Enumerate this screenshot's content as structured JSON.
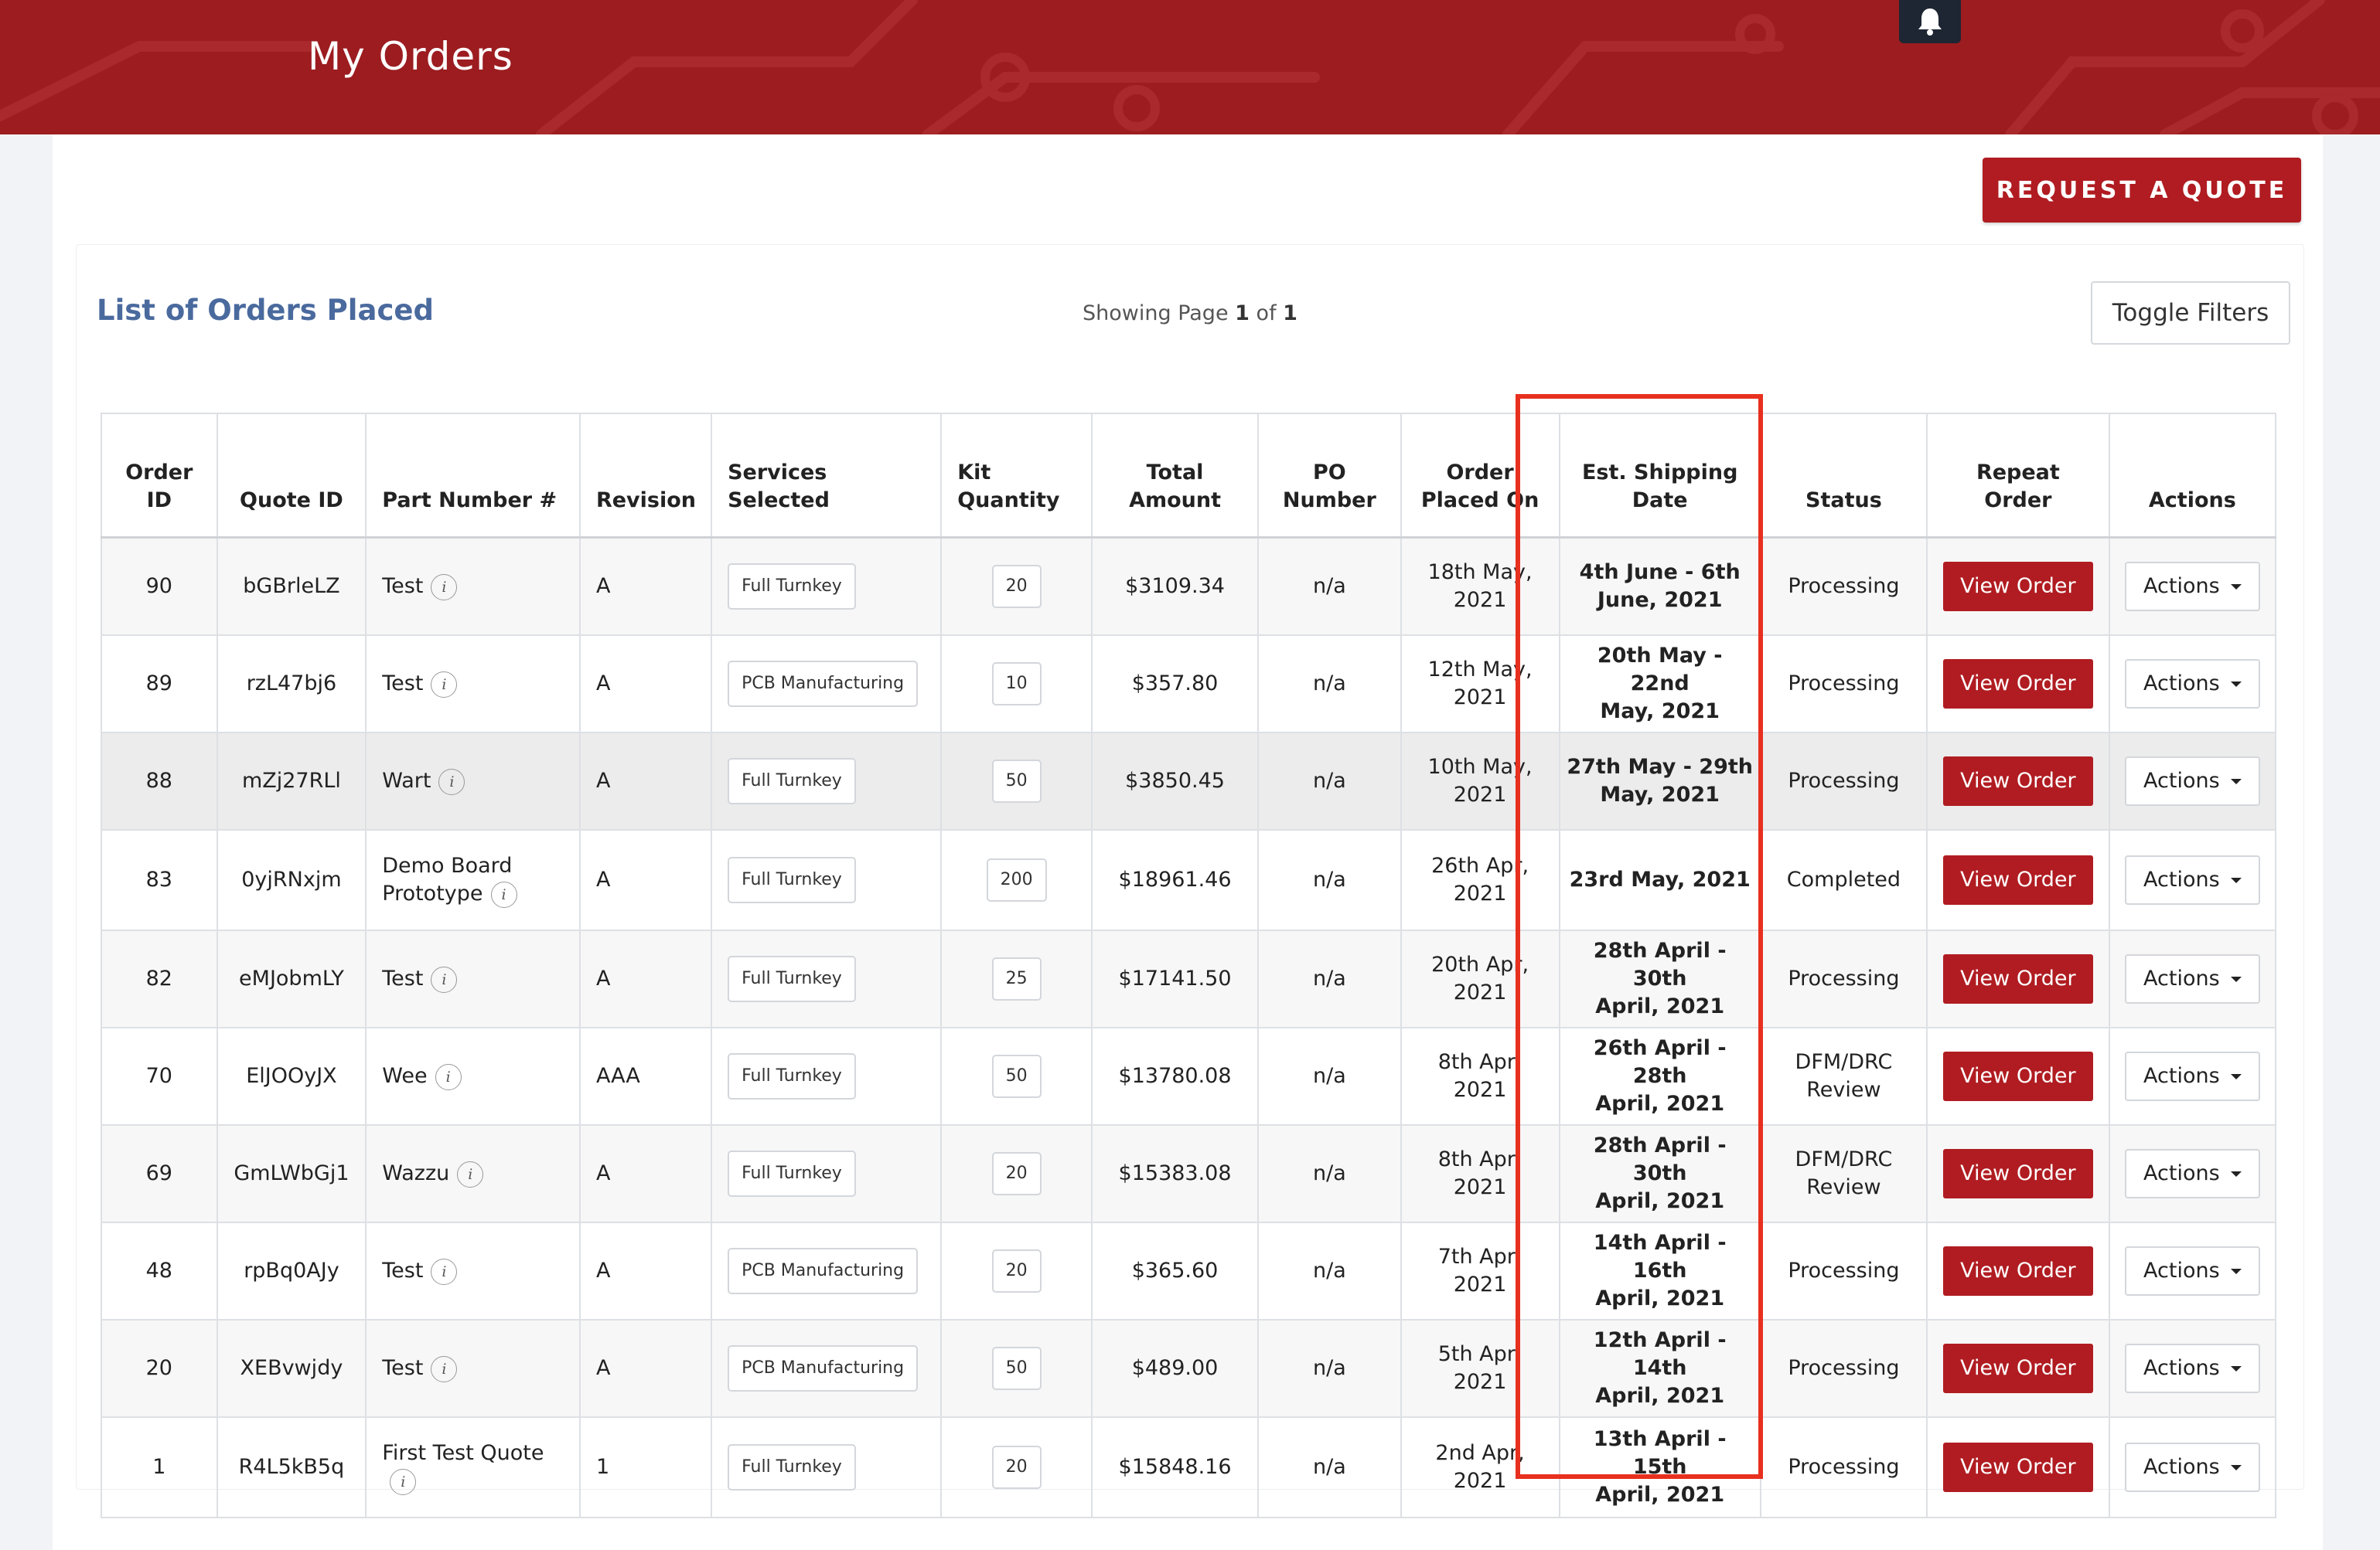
{
  "header": {
    "title": "My Orders",
    "bell_icon": "bell-icon"
  },
  "toolbar": {
    "request_quote": "REQUEST A QUOTE"
  },
  "list": {
    "title": "List of Orders Placed",
    "showing_prefix": "Showing Page",
    "page": "1",
    "of": "of",
    "total_pages": "1",
    "toggle_filters": "Toggle Filters"
  },
  "table": {
    "headers": {
      "order_id_1": "Order",
      "order_id_2": "ID",
      "quote_id": "Quote ID",
      "part_number": "Part Number #",
      "revision": "Revision",
      "services_1": "Services",
      "services_2": "Selected",
      "kit_1": "Kit",
      "kit_2": "Quantity",
      "total_1": "Total",
      "total_2": "Amount",
      "po_1": "PO",
      "po_2": "Number",
      "placed_1": "Order",
      "placed_2": "Placed On",
      "ship_1": "Est. Shipping",
      "ship_2": "Date",
      "status": "Status",
      "repeat_1": "Repeat",
      "repeat_2": "Order",
      "actions": "Actions"
    },
    "rows": [
      {
        "order_id": "90",
        "quote_id": "bGBrleLZ",
        "part": "Test",
        "revision": "A",
        "service": "Full Turnkey",
        "qty": "20",
        "total": "$3109.34",
        "po": "n/a",
        "placed_1": "18th May,",
        "placed_2": "2021",
        "ship_1": "4th June - 6th",
        "ship_2": "June, 2021",
        "status_1": "Processing",
        "status_2": "",
        "view": "View Order",
        "actions": "Actions"
      },
      {
        "order_id": "89",
        "quote_id": "rzL47bj6",
        "part": "Test",
        "revision": "A",
        "service": "PCB Manufacturing",
        "qty": "10",
        "total": "$357.80",
        "po": "n/a",
        "placed_1": "12th May,",
        "placed_2": "2021",
        "ship_1": "20th May - 22nd",
        "ship_2": "May, 2021",
        "status_1": "Processing",
        "status_2": "",
        "view": "View Order",
        "actions": "Actions"
      },
      {
        "order_id": "88",
        "quote_id": "mZj27RLl",
        "part": "Wart",
        "revision": "A",
        "service": "Full Turnkey",
        "qty": "50",
        "total": "$3850.45",
        "po": "n/a",
        "placed_1": "10th May,",
        "placed_2": "2021",
        "ship_1": "27th May - 29th",
        "ship_2": "May, 2021",
        "status_1": "Processing",
        "status_2": "",
        "view": "View Order",
        "actions": "Actions"
      },
      {
        "order_id": "83",
        "quote_id": "0yjRNxjm",
        "part": "Demo Board",
        "part_2": "Prototype",
        "revision": "A",
        "service": "Full Turnkey",
        "qty": "200",
        "total": "$18961.46",
        "po": "n/a",
        "placed_1": "26th Apr,",
        "placed_2": "2021",
        "ship_1": "23rd May, 2021",
        "ship_2": "",
        "status_1": "Completed",
        "status_2": "",
        "view": "View Order",
        "actions": "Actions"
      },
      {
        "order_id": "82",
        "quote_id": "eMJobmLY",
        "part": "Test",
        "revision": "A",
        "service": "Full Turnkey",
        "qty": "25",
        "total": "$17141.50",
        "po": "n/a",
        "placed_1": "20th Apr,",
        "placed_2": "2021",
        "ship_1": "28th April - 30th",
        "ship_2": "April, 2021",
        "status_1": "Processing",
        "status_2": "",
        "view": "View Order",
        "actions": "Actions"
      },
      {
        "order_id": "70",
        "quote_id": "ElJOOyJX",
        "part": "Wee",
        "revision": "AAA",
        "service": "Full Turnkey",
        "qty": "50",
        "total": "$13780.08",
        "po": "n/a",
        "placed_1": "8th Apr,",
        "placed_2": "2021",
        "ship_1": "26th April - 28th",
        "ship_2": "April, 2021",
        "status_1": "DFM/DRC",
        "status_2": "Review",
        "view": "View Order",
        "actions": "Actions"
      },
      {
        "order_id": "69",
        "quote_id": "GmLWbGj1",
        "part": "Wazzu",
        "revision": "A",
        "service": "Full Turnkey",
        "qty": "20",
        "total": "$15383.08",
        "po": "n/a",
        "placed_1": "8th Apr,",
        "placed_2": "2021",
        "ship_1": "28th April - 30th",
        "ship_2": "April, 2021",
        "status_1": "DFM/DRC",
        "status_2": "Review",
        "view": "View Order",
        "actions": "Actions"
      },
      {
        "order_id": "48",
        "quote_id": "rpBq0AJy",
        "part": "Test",
        "revision": "A",
        "service": "PCB Manufacturing",
        "qty": "20",
        "total": "$365.60",
        "po": "n/a",
        "placed_1": "7th Apr,",
        "placed_2": "2021",
        "ship_1": "14th April - 16th",
        "ship_2": "April, 2021",
        "status_1": "Processing",
        "status_2": "",
        "view": "View Order",
        "actions": "Actions"
      },
      {
        "order_id": "20",
        "quote_id": "XEBvwjdy",
        "part": "Test",
        "revision": "A",
        "service": "PCB Manufacturing",
        "qty": "50",
        "total": "$489.00",
        "po": "n/a",
        "placed_1": "5th Apr,",
        "placed_2": "2021",
        "ship_1": "12th April - 14th",
        "ship_2": "April, 2021",
        "status_1": "Processing",
        "status_2": "",
        "view": "View Order",
        "actions": "Actions"
      },
      {
        "order_id": "1",
        "quote_id": "R4L5kB5q",
        "part": "First Test Quote",
        "part_2": "",
        "revision": "1",
        "service": "Full Turnkey",
        "qty": "20",
        "total": "$15848.16",
        "po": "n/a",
        "placed_1": "2nd Apr,",
        "placed_2": "2021",
        "ship_1": "13th April - 15th",
        "ship_2": "April, 2021",
        "status_1": "Processing",
        "status_2": "",
        "view": "View Order",
        "actions": "Actions"
      }
    ]
  },
  "colors": {
    "brand_red": "#9c1c20",
    "button_red": "#b01c21",
    "ship_green": "#23881c",
    "highlight_outline": "#e8301f",
    "title_blue": "#4a6a9e"
  }
}
